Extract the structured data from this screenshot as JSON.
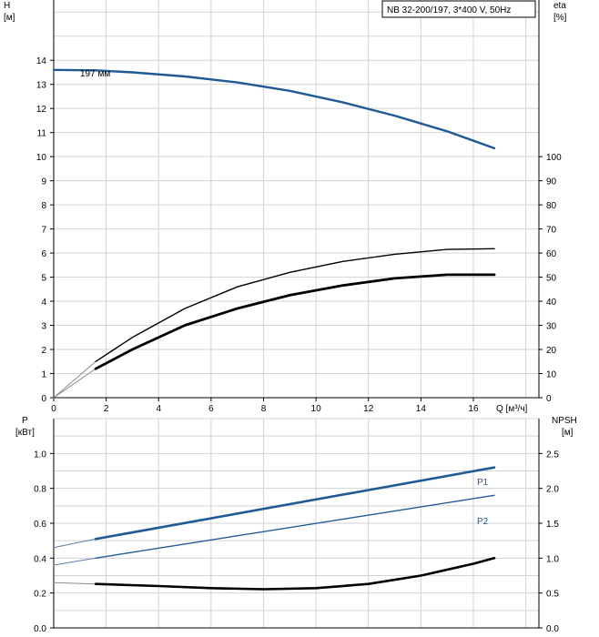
{
  "chart_data": [
    {
      "type": "line",
      "title": "NB 32-200/197, 3*400 V, 50Hz",
      "xlabel": "Q [м³/ч]",
      "x_ticks": [
        "0",
        "2",
        "4",
        "6",
        "8",
        "10",
        "12",
        "14",
        "16"
      ],
      "xlim": [
        0,
        18.5
      ],
      "grid": true,
      "left_axis": {
        "label_top": "H",
        "label_bottom": "[м]",
        "ylim": [
          0,
          16.5
        ],
        "ticks": [
          "0",
          "1",
          "2",
          "3",
          "4",
          "5",
          "6",
          "7",
          "8",
          "9",
          "10",
          "11",
          "12",
          "13",
          "14"
        ]
      },
      "right_axis": {
        "label_top": "eta",
        "label_bottom": "[%]",
        "ylim": [
          0,
          165
        ],
        "ticks": [
          "0",
          "10",
          "20",
          "30",
          "40",
          "50",
          "60",
          "70",
          "80",
          "90",
          "100"
        ]
      },
      "series": [
        {
          "name": "197 мм",
          "axis": "left",
          "color": "#1f5a96",
          "style": "thick",
          "x": [
            0,
            1.6,
            3,
            5,
            7,
            9,
            11,
            13,
            15,
            16.8
          ],
          "y": [
            13.6,
            13.58,
            13.5,
            13.33,
            13.08,
            12.73,
            12.26,
            11.7,
            11.05,
            10.35
          ]
        },
        {
          "name": "",
          "axis": "right",
          "color": "#000000",
          "style": "thin",
          "x": [
            1.6,
            3,
            5,
            7,
            9,
            11,
            13,
            15,
            16.8
          ],
          "y": [
            15,
            25,
            37,
            46,
            52,
            56.5,
            59.5,
            61.5,
            61.8
          ]
        },
        {
          "name": "",
          "axis": "right",
          "color": "#000000",
          "style": "thick",
          "x": [
            1.6,
            3,
            5,
            7,
            9,
            11,
            13,
            15,
            16.8
          ],
          "y": [
            12,
            20,
            30,
            37,
            42.5,
            46.5,
            49.5,
            51,
            51
          ]
        }
      ],
      "extrapolation_series": [
        {
          "axis": "left",
          "x": [
            0,
            1.6
          ],
          "y": [
            13.6,
            13.58
          ]
        },
        {
          "axis": "right",
          "x": [
            0,
            1.6
          ],
          "y": [
            0,
            15
          ]
        },
        {
          "axis": "right",
          "x": [
            0,
            1.6
          ],
          "y": [
            0,
            12
          ]
        }
      ],
      "annotations": [
        {
          "text": "197 мм"
        }
      ]
    },
    {
      "type": "line",
      "left_axis": {
        "label_top": "P",
        "label_bottom": "[кВт]",
        "ylim": [
          0,
          1.2
        ],
        "ticks": [
          "0.0",
          "0.2",
          "0.4",
          "0.6",
          "0.8",
          "1.0"
        ]
      },
      "right_axis": {
        "label_top": "NPSH",
        "label_bottom": "[м]",
        "ylim": [
          0,
          3
        ],
        "ticks": [
          "0.0",
          "0.5",
          "1.0",
          "1.5",
          "2.0",
          "2.5"
        ]
      },
      "xlim": [
        0,
        18.5
      ],
      "grid": true,
      "series": [
        {
          "name": "P1",
          "axis": "left",
          "color": "#1f5a96",
          "style": "thick",
          "x": [
            1.6,
            16.8
          ],
          "y": [
            0.51,
            0.92
          ]
        },
        {
          "name": "P2",
          "axis": "left",
          "color": "#1f5a96",
          "style": "thin",
          "x": [
            1.6,
            16.8
          ],
          "y": [
            0.4,
            0.76
          ]
        },
        {
          "name": "",
          "axis": "right",
          "color": "#000000",
          "style": "thick",
          "x": [
            1.6,
            4,
            6,
            8,
            10,
            12,
            14,
            16,
            16.8
          ],
          "y": [
            0.63,
            0.6,
            0.57,
            0.555,
            0.57,
            0.63,
            0.75,
            0.92,
            1.0
          ]
        }
      ],
      "extrapolation_series": [
        {
          "axis": "left",
          "x": [
            0,
            1.6
          ],
          "y": [
            0.46,
            0.51
          ]
        },
        {
          "axis": "left",
          "x": [
            0,
            1.6
          ],
          "y": [
            0.36,
            0.4
          ]
        },
        {
          "axis": "right",
          "x": [
            0,
            1.6
          ],
          "y": [
            0.65,
            0.63
          ]
        }
      ]
    }
  ]
}
